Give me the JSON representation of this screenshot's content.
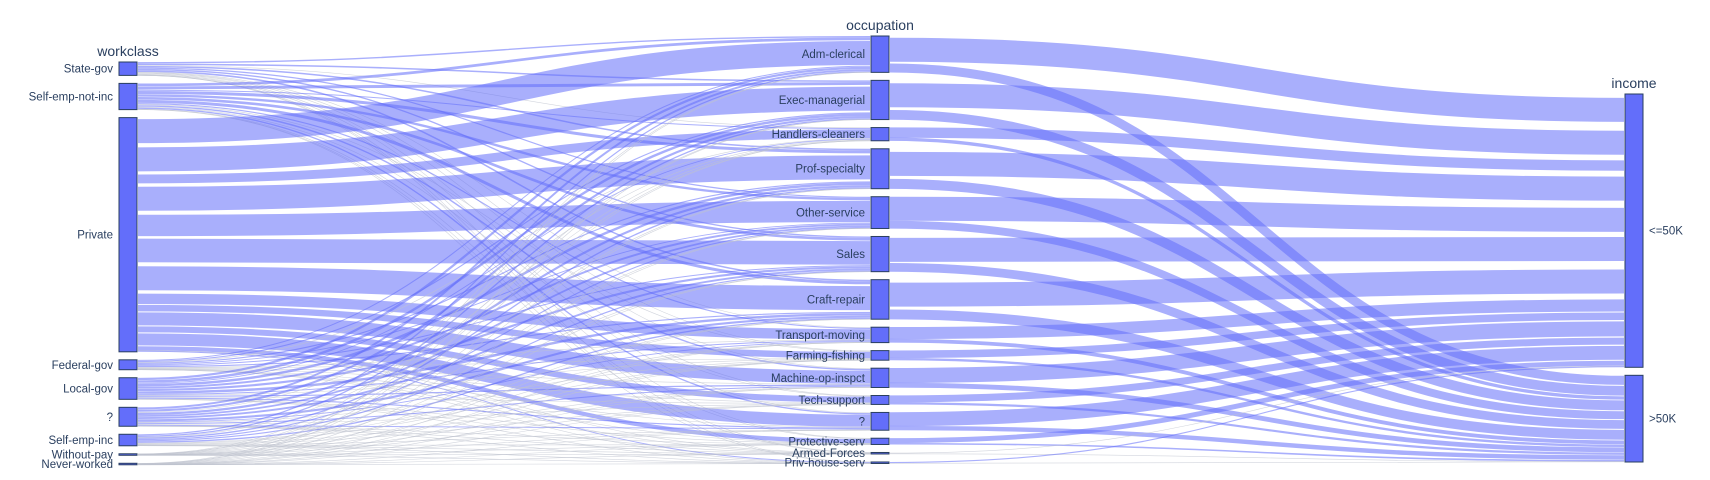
{
  "chart_data": {
    "type": "parallel-categories",
    "dimensions": [
      {
        "label": "workclass",
        "categories": [
          {
            "label": "State-gov",
            "count": 1298
          },
          {
            "label": "Self-emp-not-inc",
            "count": 2541
          },
          {
            "label": "Private",
            "count": 22696
          },
          {
            "label": "Federal-gov",
            "count": 960
          },
          {
            "label": "Local-gov",
            "count": 2093
          },
          {
            "label": "?",
            "count": 1836
          },
          {
            "label": "Self-emp-inc",
            "count": 1116
          },
          {
            "label": "Without-pay",
            "count": 14
          },
          {
            "label": "Never-worked",
            "count": 7
          }
        ]
      },
      {
        "label": "occupation",
        "categories": [
          {
            "label": "Adm-clerical",
            "count": 3770
          },
          {
            "label": "Exec-managerial",
            "count": 4066
          },
          {
            "label": "Handlers-cleaners",
            "count": 1370
          },
          {
            "label": "Prof-specialty",
            "count": 4140
          },
          {
            "label": "Other-service",
            "count": 3295
          },
          {
            "label": "Sales",
            "count": 3650
          },
          {
            "label": "Craft-repair",
            "count": 4099
          },
          {
            "label": "Transport-moving",
            "count": 1597
          },
          {
            "label": "Farming-fishing",
            "count": 994
          },
          {
            "label": "Machine-op-inspct",
            "count": 2002
          },
          {
            "label": "Tech-support",
            "count": 928
          },
          {
            "label": "?",
            "count": 1843
          },
          {
            "label": "Protective-serv",
            "count": 649
          },
          {
            "label": "Armed-Forces",
            "count": 9
          },
          {
            "label": "Priv-house-serv",
            "count": 149
          }
        ]
      },
      {
        "label": "income",
        "categories": [
          {
            "label": "<=50K",
            "count": 24720
          },
          {
            "label": ">50K",
            "count": 7841
          }
        ]
      }
    ],
    "colors": {
      "bar": "#636efa",
      "ribbon": "#636efa",
      "faint_ribbon": "#bfc3cf",
      "text": "#2a3f5f"
    },
    "line_color": "single"
  }
}
